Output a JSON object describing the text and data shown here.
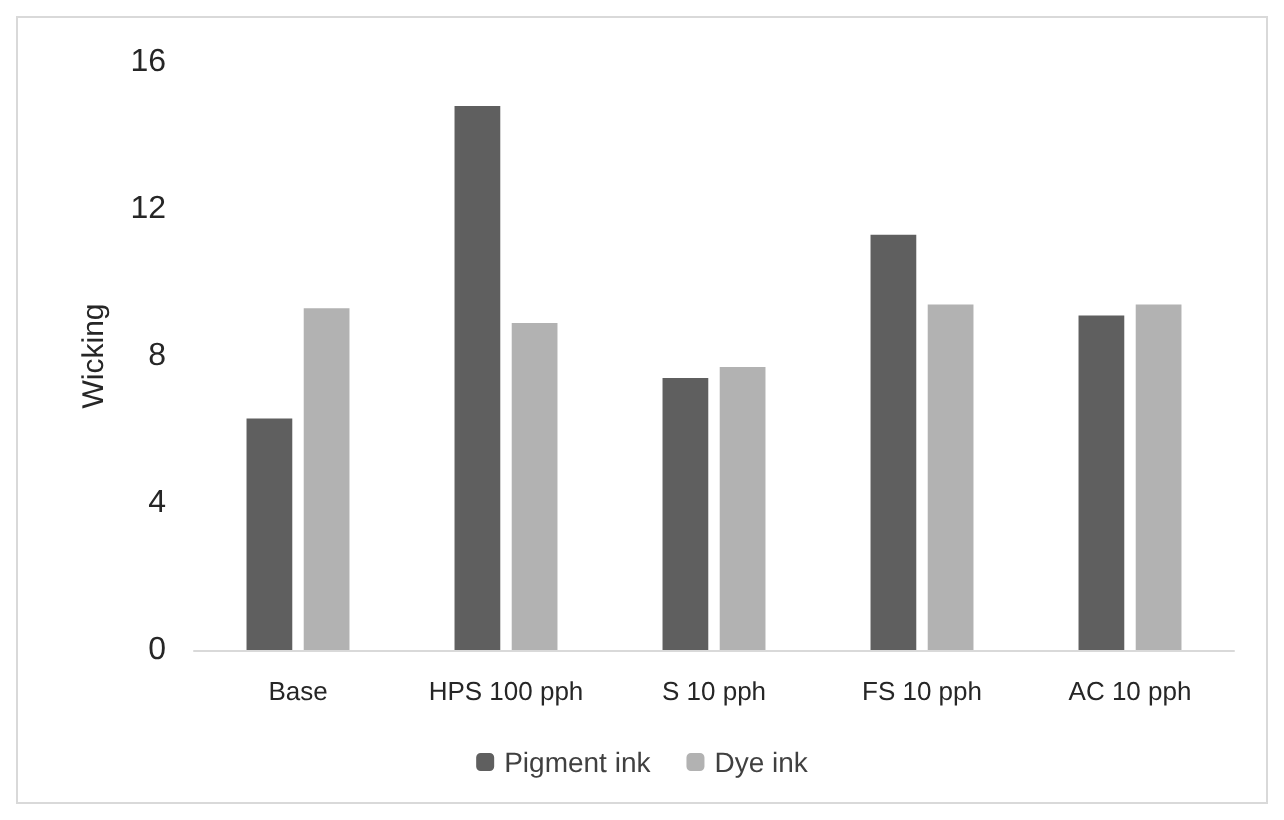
{
  "chart_data": {
    "type": "bar",
    "ylabel": "Wicking",
    "categories": [
      "Base",
      "HPS 100 pph",
      "S 10 pph",
      "FS 10 pph",
      "AC 10 pph"
    ],
    "series": [
      {
        "name": "Pigment ink",
        "color": "#5f5f5f",
        "values": [
          6.3,
          14.8,
          7.4,
          11.3,
          9.1
        ]
      },
      {
        "name": "Dye ink",
        "color": "#b2b2b2",
        "values": [
          9.3,
          8.9,
          7.7,
          9.4,
          9.4
        ]
      }
    ],
    "ylim": [
      0,
      16
    ],
    "yticks": [
      0,
      4,
      8,
      12,
      16
    ],
    "grid": false,
    "legend": "bottom"
  }
}
